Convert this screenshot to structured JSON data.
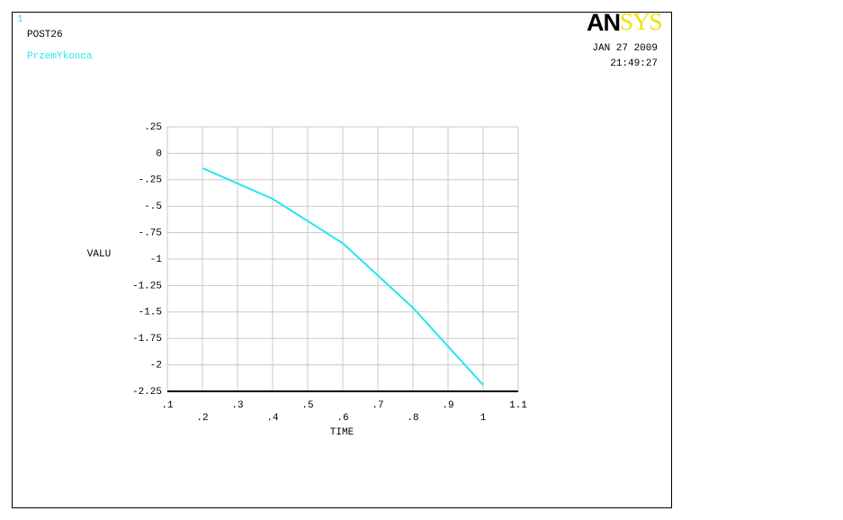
{
  "chart_data": {
    "type": "line",
    "window_number": "1",
    "title": "POST26",
    "date": "JAN 27 2009",
    "time": "21:49:27",
    "logo": [
      "AN",
      "SYS"
    ],
    "x_label": "TIME",
    "y_label": "VALU",
    "x": [
      0.2,
      0.4,
      0.6,
      0.8,
      1
    ],
    "series": [
      {
        "name": "PrzemYkonca",
        "color": "#22e8f0",
        "values": [
          -0.14,
          -0.43,
          -0.85,
          -1.46,
          -2.19
        ]
      }
    ],
    "xlim": [
      0.1,
      1.1
    ],
    "xticks": [
      {
        "value": 0.1,
        "label": ".1"
      },
      {
        "value": 0.2,
        "label": ".2"
      },
      {
        "value": 0.3,
        "label": ".3"
      },
      {
        "value": 0.4,
        "label": ".4"
      },
      {
        "value": 0.5,
        "label": ".5"
      },
      {
        "value": 0.6,
        "label": ".6"
      },
      {
        "value": 0.7,
        "label": ".7"
      },
      {
        "value": 0.8,
        "label": ".8"
      },
      {
        "value": 0.9,
        "label": ".9"
      },
      1,
      1.1
    ],
    "ylim": [
      -2.25,
      0.25
    ],
    "yticks": [
      {
        "value": 0.25,
        "label": ".25"
      },
      0,
      {
        "value": -0.25,
        "label": "-.25"
      },
      {
        "value": -0.5,
        "label": "-.5"
      },
      {
        "value": -0.75,
        "label": "-.75"
      },
      -1,
      {
        "value": -1.25,
        "label": "-1.25"
      },
      {
        "value": -1.5,
        "label": "-1.5"
      },
      {
        "value": -1.75,
        "label": "-1.75"
      },
      -2,
      {
        "value": -2.25,
        "label": "-2.25"
      }
    ],
    "grid": true
  }
}
